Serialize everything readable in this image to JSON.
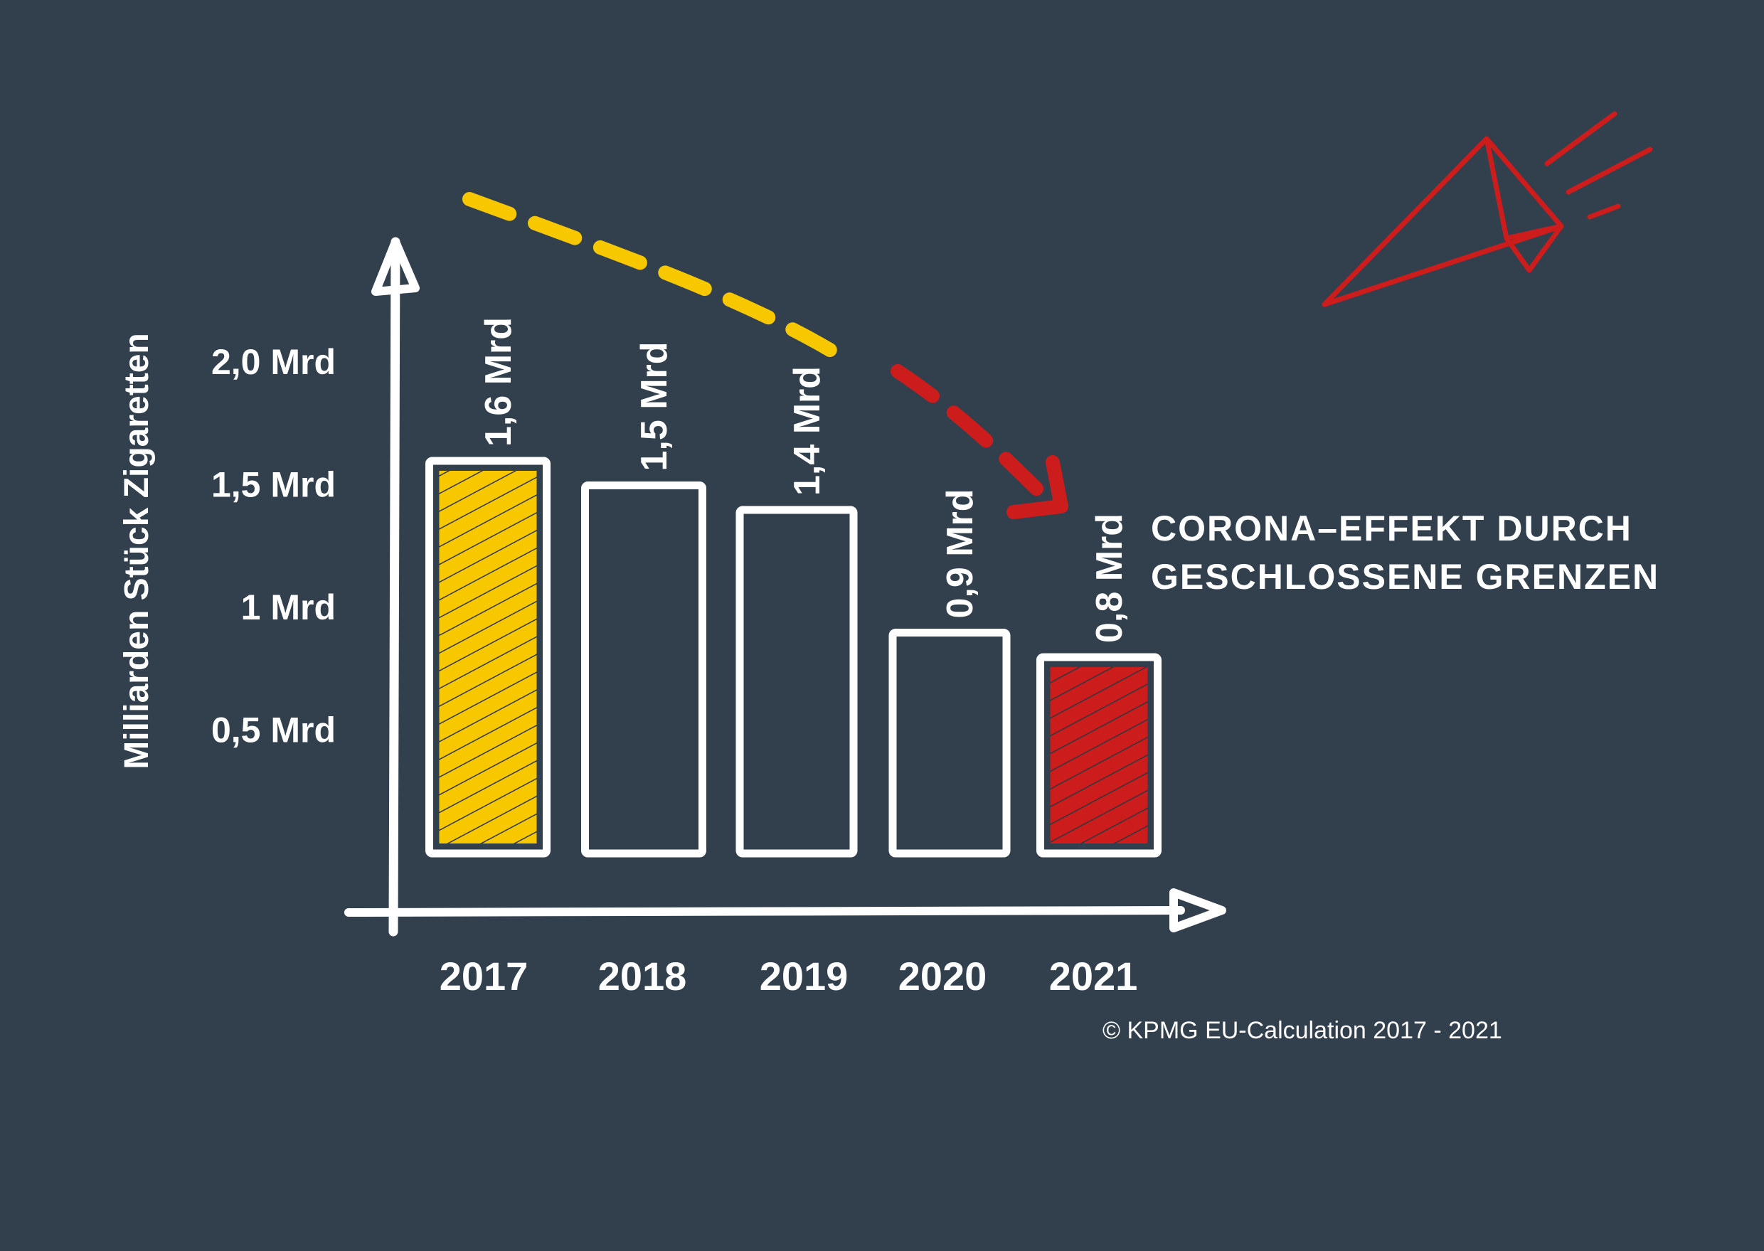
{
  "chart_data": {
    "type": "bar",
    "title": "",
    "xlabel": "",
    "ylabel": "Milliarden Stück Zigaretten",
    "ylim": [
      0,
      2.0
    ],
    "y_ticks": [
      {
        "value": 0.5,
        "label": "0,5 Mrd"
      },
      {
        "value": 1.0,
        "label": "1 Mrd"
      },
      {
        "value": 1.5,
        "label": "1,5 Mrd"
      },
      {
        "value": 2.0,
        "label": "2,0 Mrd"
      }
    ],
    "categories": [
      "2017",
      "2018",
      "2019",
      "2020",
      "2021"
    ],
    "values": [
      1.6,
      1.5,
      1.4,
      0.9,
      0.8
    ],
    "data_labels": [
      "1,6 Mrd",
      "1,5 Mrd",
      "1,4 Mrd",
      "0,9 Mrd",
      "0,8 Mrd"
    ],
    "highlight": {
      "2017": "#f7c800",
      "2021": "#cc1c1c"
    },
    "grid": false,
    "legend": "none",
    "annotation": [
      "CORONA–EFFEKT DURCH",
      "GESCHLOSSENE GRENZEN"
    ],
    "source": "© KPMG EU-Calculation 2017 - 2021"
  },
  "colors": {
    "background": "#323f4c",
    "axis": "#ffffff",
    "yellow": "#f7c800",
    "red": "#cc1c1c"
  },
  "icons": {
    "decoration": "paper-plane-icon"
  }
}
